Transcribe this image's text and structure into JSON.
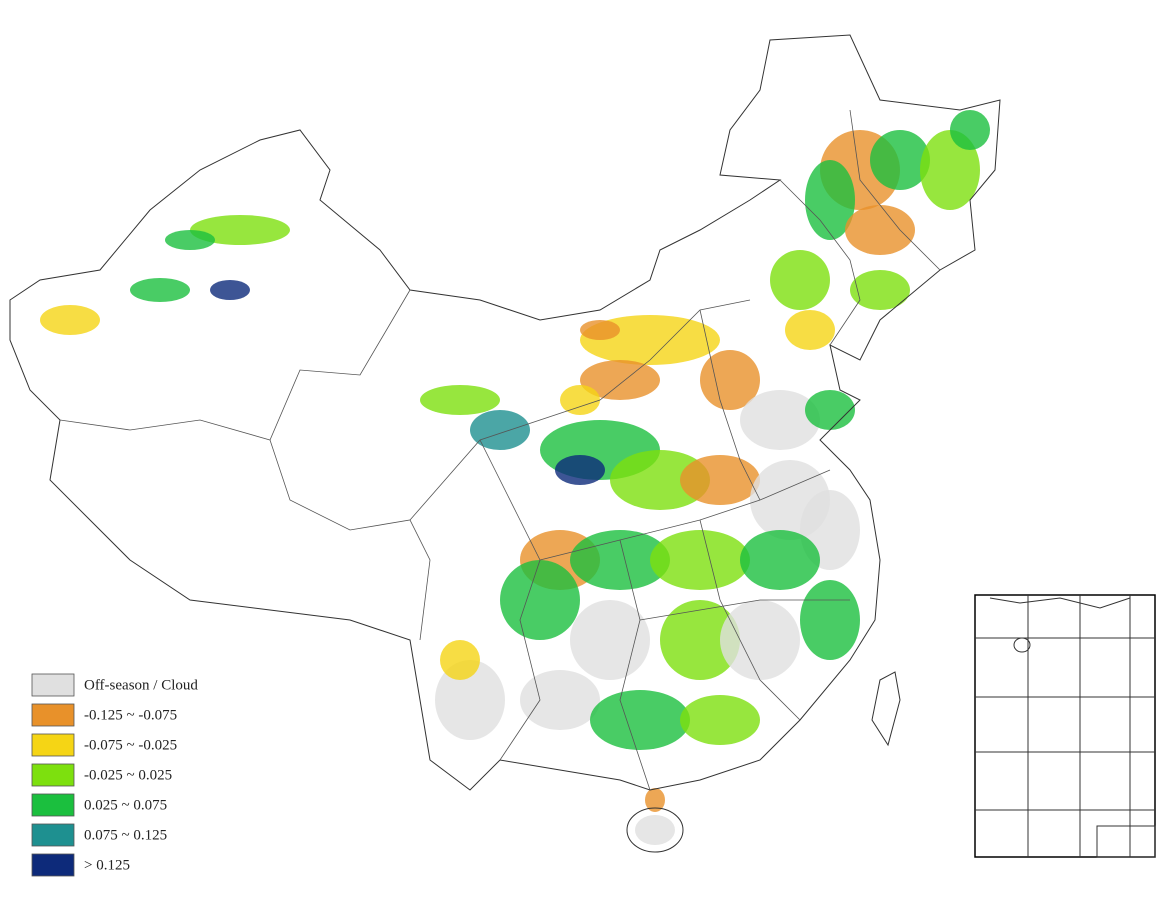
{
  "legend": {
    "items": [
      {
        "label": "Off-season / Cloud",
        "color": "#e0e0e0"
      },
      {
        "label": "-0.125 ~ -0.075",
        "color": "#e8912a"
      },
      {
        "label": "-0.075 ~ -0.025",
        "color": "#f5d515"
      },
      {
        "label": "-0.025 ~ 0.025",
        "color": "#7de00e"
      },
      {
        "label": "0.025 ~ 0.075",
        "color": "#1bbf3e"
      },
      {
        "label": "0.075 ~ 0.125",
        "color": "#1e9090"
      },
      {
        "label": "> 0.125",
        "color": "#0d2a7a"
      }
    ]
  }
}
